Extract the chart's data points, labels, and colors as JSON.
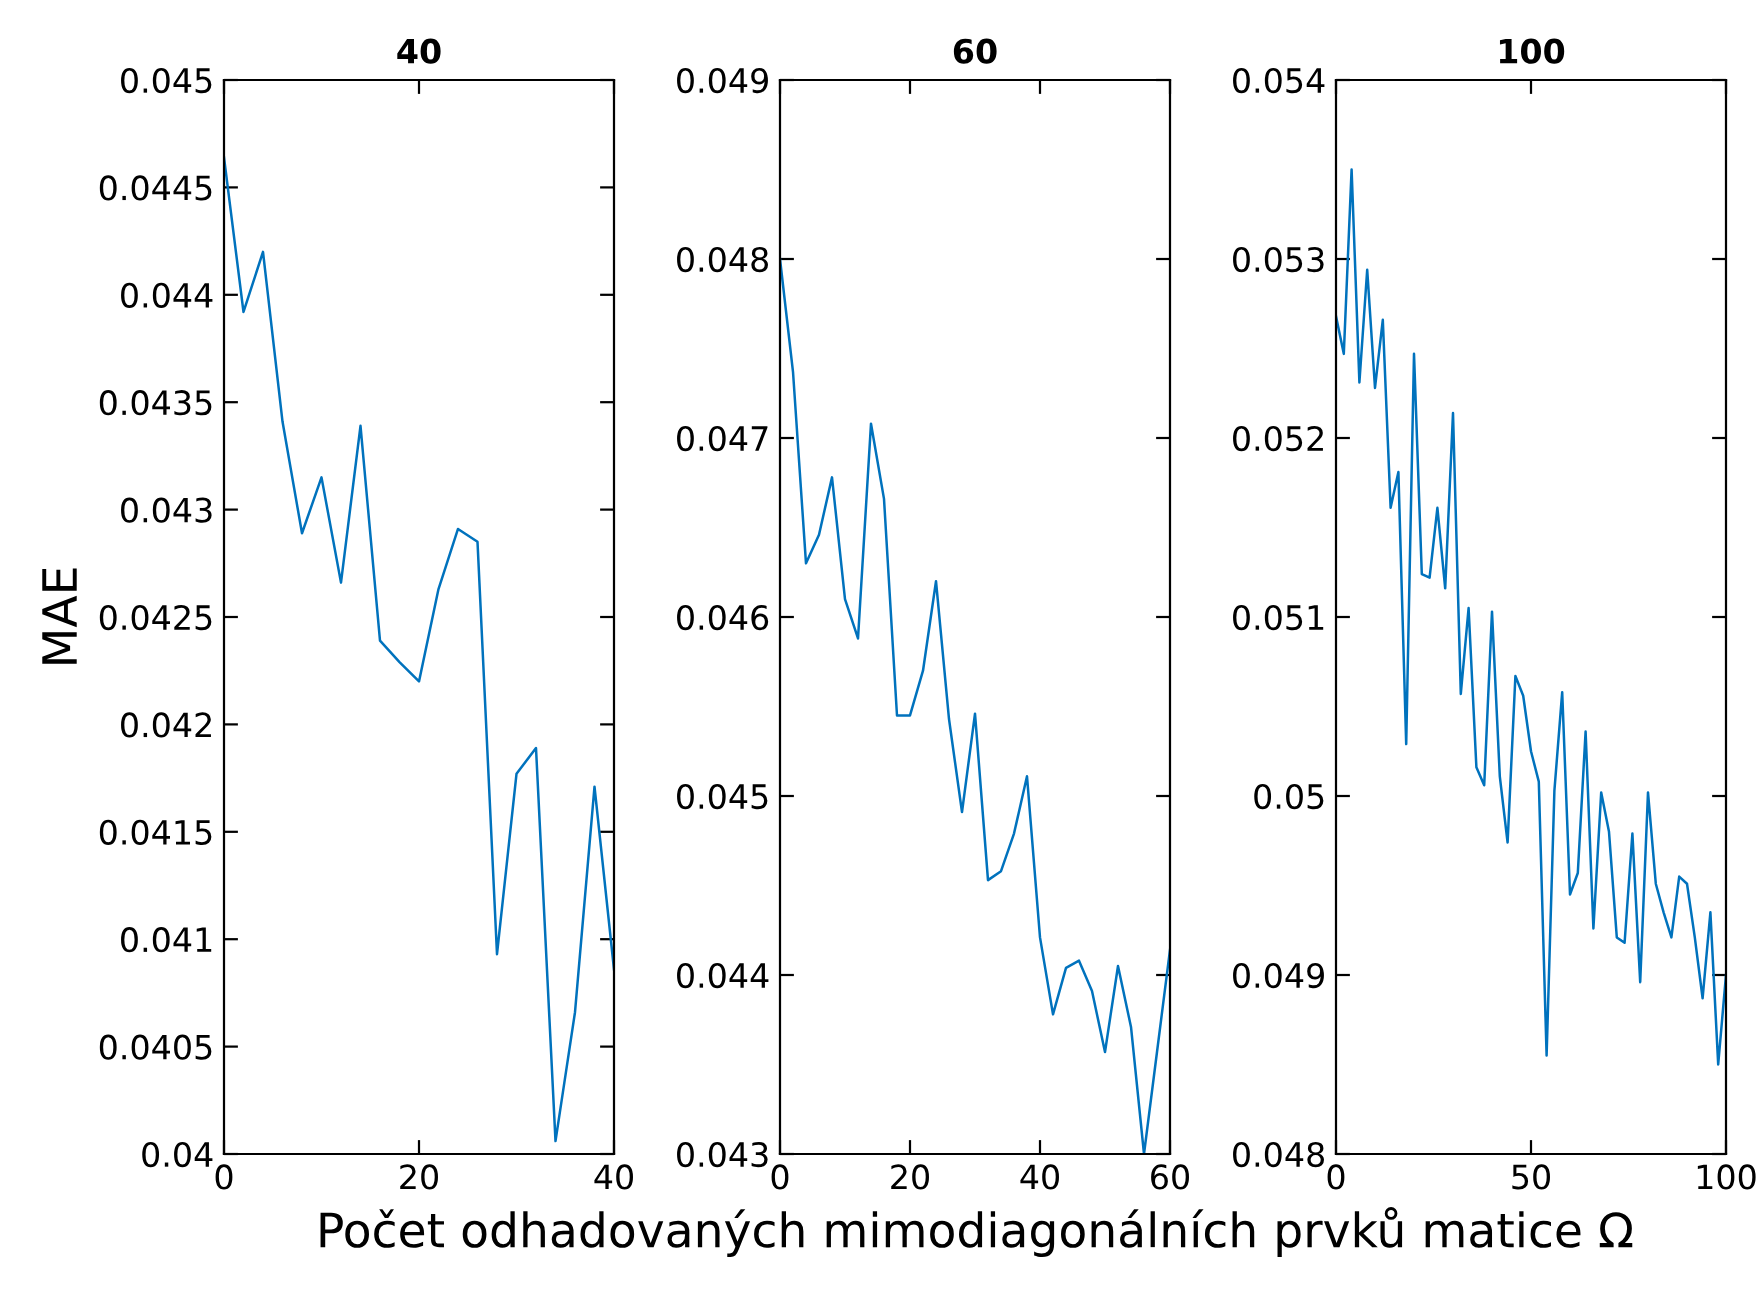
{
  "chart_data": [
    {
      "type": "line",
      "title": "40",
      "ylabel": "MAE",
      "x": [
        0,
        2,
        4,
        6,
        8,
        10,
        12,
        14,
        16,
        18,
        20,
        22,
        24,
        26,
        28,
        30,
        32,
        34,
        36,
        38,
        40
      ],
      "series": [
        {
          "color": "#0072bd",
          "values": [
            0.04464,
            0.04392,
            0.0442,
            0.04341,
            0.04289,
            0.04315,
            0.04266,
            0.04339,
            0.04239,
            0.04229,
            0.0422,
            0.04263,
            0.04291,
            0.04285,
            0.04093,
            0.04177,
            0.04189,
            0.04006,
            0.04066,
            0.04171,
            0.04086
          ]
        }
      ],
      "xlim": [
        0,
        40
      ],
      "xticks": [
        0,
        20,
        40
      ],
      "ylim": [
        0.04,
        0.045
      ],
      "yticks": [
        0.04,
        0.0405,
        0.041,
        0.0415,
        0.042,
        0.0425,
        0.043,
        0.0435,
        0.044,
        0.0445,
        0.045
      ],
      "grid": false,
      "legend": false
    },
    {
      "type": "line",
      "title": "60",
      "xlabel": "Počet odhadovaných mimodiagonálních prvků matice Ω",
      "x": [
        0,
        2,
        4,
        6,
        8,
        10,
        12,
        14,
        16,
        18,
        20,
        22,
        24,
        26,
        28,
        30,
        32,
        34,
        36,
        38,
        40,
        42,
        44,
        46,
        48,
        50,
        52,
        54,
        56,
        58,
        60
      ],
      "series": [
        {
          "color": "#0072bd",
          "values": [
            0.048,
            0.04737,
            0.0463,
            0.04646,
            0.04678,
            0.0461,
            0.04588,
            0.04708,
            0.04666,
            0.04545,
            0.04545,
            0.0457,
            0.0462,
            0.04543,
            0.04491,
            0.04546,
            0.04453,
            0.04458,
            0.04479,
            0.04511,
            0.04421,
            0.04378,
            0.04404,
            0.04408,
            0.04391,
            0.04357,
            0.04405,
            0.04371,
            0.043,
            0.04357,
            0.04414
          ]
        }
      ],
      "xlim": [
        0,
        60
      ],
      "xticks": [
        0,
        20,
        40,
        60
      ],
      "ylim": [
        0.043,
        0.049
      ],
      "yticks": [
        0.043,
        0.044,
        0.045,
        0.046,
        0.047,
        0.048,
        0.049
      ],
      "grid": false,
      "legend": false
    },
    {
      "type": "line",
      "title": "100",
      "x": [
        0,
        2,
        4,
        6,
        8,
        10,
        12,
        14,
        16,
        18,
        20,
        22,
        24,
        26,
        28,
        30,
        32,
        34,
        36,
        38,
        40,
        42,
        44,
        46,
        48,
        50,
        52,
        54,
        56,
        58,
        60,
        62,
        64,
        66,
        68,
        70,
        72,
        74,
        76,
        78,
        80,
        82,
        84,
        86,
        88,
        90,
        92,
        94,
        96,
        98,
        100
      ],
      "series": [
        {
          "color": "#0072bd",
          "values": [
            0.05268,
            0.05247,
            0.0535,
            0.05231,
            0.05294,
            0.05228,
            0.05266,
            0.05161,
            0.05181,
            0.05029,
            0.05247,
            0.05124,
            0.05122,
            0.05161,
            0.05116,
            0.05214,
            0.05057,
            0.05105,
            0.05016,
            0.05006,
            0.05103,
            0.05011,
            0.04974,
            0.05067,
            0.05056,
            0.05025,
            0.05008,
            0.04855,
            0.05003,
            0.05058,
            0.04945,
            0.04957,
            0.05036,
            0.04926,
            0.05002,
            0.0498,
            0.04921,
            0.04918,
            0.04979,
            0.04896,
            0.05002,
            0.04951,
            0.04935,
            0.04921,
            0.04955,
            0.04951,
            0.04921,
            0.04887,
            0.04935,
            0.0485,
            0.049
          ]
        }
      ],
      "xlim": [
        0,
        100
      ],
      "xticks": [
        0,
        50,
        100
      ],
      "ylim": [
        0.048,
        0.054
      ],
      "yticks": [
        0.048,
        0.049,
        0.05,
        0.051,
        0.052,
        0.053,
        0.054
      ],
      "grid": false,
      "legend": false
    }
  ]
}
